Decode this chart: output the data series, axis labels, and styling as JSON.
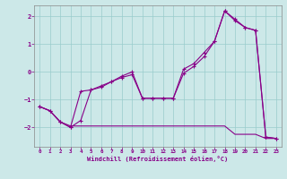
{
  "xlabel": "Windchill (Refroidissement éolien,°C)",
  "background_color": "#cce8e8",
  "grid_color": "#99cccc",
  "line_color": "#880088",
  "x_values": [
    0,
    1,
    2,
    3,
    4,
    5,
    6,
    7,
    8,
    9,
    10,
    11,
    12,
    13,
    14,
    15,
    16,
    17,
    18,
    19,
    20,
    21,
    22,
    23
  ],
  "line1": [
    -1.25,
    -1.4,
    -1.8,
    -2.0,
    -0.7,
    -0.65,
    -0.55,
    -0.35,
    -0.2,
    -0.1,
    -0.95,
    -0.95,
    -0.95,
    -0.95,
    -0.05,
    0.2,
    0.55,
    1.1,
    2.2,
    1.9,
    1.6,
    1.5,
    -2.35,
    -2.4
  ],
  "line2": [
    -1.25,
    -1.4,
    -1.8,
    -2.0,
    -1.75,
    -0.65,
    -0.5,
    -0.35,
    -0.15,
    0.0,
    -0.95,
    -0.95,
    -0.95,
    -0.95,
    0.1,
    0.3,
    0.7,
    1.1,
    2.2,
    1.85,
    1.6,
    1.5,
    -2.35,
    -2.4
  ],
  "line3": [
    -1.25,
    -1.4,
    -1.8,
    -1.95,
    -1.95,
    -1.95,
    -1.95,
    -1.95,
    -1.95,
    -1.95,
    -1.95,
    -1.95,
    -1.95,
    -1.95,
    -1.95,
    -1.95,
    -1.95,
    -1.95,
    -1.95,
    -2.25,
    -2.25,
    -2.25,
    -2.4,
    -2.4
  ],
  "ylim": [
    -2.7,
    2.4
  ],
  "yticks": [
    -2,
    -1,
    0,
    1,
    2
  ],
  "xticks": [
    0,
    1,
    2,
    3,
    4,
    5,
    6,
    7,
    8,
    9,
    10,
    11,
    12,
    13,
    14,
    15,
    16,
    17,
    18,
    19,
    20,
    21,
    22,
    23
  ]
}
